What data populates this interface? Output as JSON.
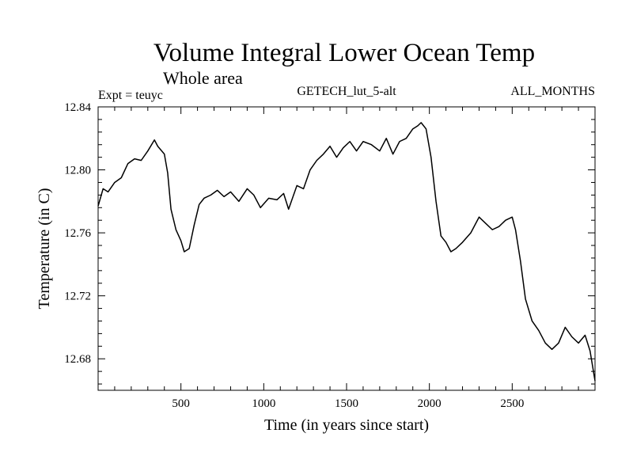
{
  "chart_data": {
    "type": "line",
    "title": "Volume Integral Lower Ocean Temp",
    "subtitle": "Whole area",
    "experiment_label": "Expt = teuyc",
    "dataset_label": "GETECH_lut_5-alt",
    "months_label": "ALL_MONTHS",
    "xlabel": "Time (in years since start)",
    "ylabel": "Temperature (in C)",
    "xlim": [
      0,
      3000
    ],
    "ylim": [
      12.66,
      12.84
    ],
    "x_ticks": [
      500,
      1000,
      1500,
      2000,
      2500
    ],
    "x_tick_labels": [
      "500",
      "1000",
      "1500",
      "2000",
      "2500"
    ],
    "y_ticks": [
      12.68,
      12.72,
      12.76,
      12.8,
      12.84
    ],
    "y_tick_labels": [
      "12.68",
      "12.72",
      "12.76",
      "12.80",
      "12.84"
    ],
    "grid": false,
    "line_color": "#000000",
    "series": [
      {
        "name": "Volume Integral Lower Ocean Temp",
        "x": [
          0,
          30,
          60,
          100,
          140,
          180,
          220,
          260,
          300,
          340,
          360,
          400,
          420,
          440,
          470,
          500,
          520,
          550,
          580,
          610,
          640,
          680,
          720,
          760,
          800,
          850,
          900,
          940,
          980,
          1030,
          1080,
          1120,
          1150,
          1200,
          1240,
          1280,
          1320,
          1360,
          1400,
          1440,
          1480,
          1520,
          1560,
          1600,
          1650,
          1700,
          1740,
          1780,
          1820,
          1860,
          1900,
          1930,
          1950,
          1980,
          2010,
          2040,
          2070,
          2100,
          2130,
          2160,
          2200,
          2250,
          2300,
          2340,
          2380,
          2420,
          2460,
          2500,
          2520,
          2550,
          2580,
          2620,
          2660,
          2700,
          2740,
          2780,
          2820,
          2860,
          2900,
          2940,
          2970,
          3000
        ],
        "values": [
          12.777,
          12.788,
          12.786,
          12.792,
          12.795,
          12.804,
          12.807,
          12.806,
          12.812,
          12.819,
          12.815,
          12.81,
          12.798,
          12.775,
          12.762,
          12.755,
          12.748,
          12.75,
          12.765,
          12.778,
          12.782,
          12.784,
          12.787,
          12.783,
          12.786,
          12.78,
          12.788,
          12.784,
          12.776,
          12.782,
          12.781,
          12.785,
          12.775,
          12.79,
          12.788,
          12.8,
          12.806,
          12.81,
          12.815,
          12.808,
          12.814,
          12.818,
          12.812,
          12.818,
          12.816,
          12.812,
          12.82,
          12.81,
          12.818,
          12.82,
          12.826,
          12.828,
          12.83,
          12.826,
          12.808,
          12.78,
          12.758,
          12.754,
          12.748,
          12.75,
          12.754,
          12.76,
          12.77,
          12.766,
          12.762,
          12.764,
          12.768,
          12.77,
          12.762,
          12.742,
          12.718,
          12.704,
          12.698,
          12.69,
          12.686,
          12.69,
          12.7,
          12.694,
          12.69,
          12.695,
          12.685,
          12.666
        ]
      }
    ]
  }
}
